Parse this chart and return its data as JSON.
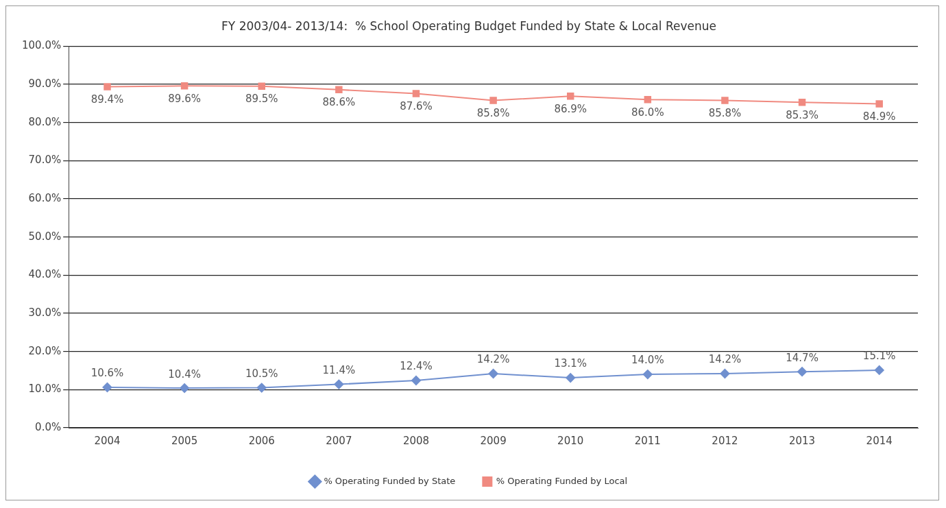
{
  "chart_data": {
    "type": "line",
    "title": "FY 2003/04- 2013/14:  % School Operating Budget Funded by State & Local Revenue",
    "categories": [
      "2004",
      "2005",
      "2006",
      "2007",
      "2008",
      "2009",
      "2010",
      "2011",
      "2012",
      "2013",
      "2014"
    ],
    "series": [
      {
        "name": "% Operating Funded by State",
        "color": "#7090cf",
        "marker": "diamond",
        "values": [
          10.6,
          10.4,
          10.5,
          11.4,
          12.4,
          14.2,
          13.1,
          14.0,
          14.2,
          14.7,
          15.1
        ],
        "value_labels": [
          "10.6%",
          "10.4%",
          "10.5%",
          "11.4%",
          "12.4%",
          "14.2%",
          "13.1%",
          "14.0%",
          "14.2%",
          "14.7%",
          "15.1%"
        ]
      },
      {
        "name": "% Operating Funded by Local",
        "color": "#f08a80",
        "marker": "square",
        "values": [
          89.4,
          89.6,
          89.5,
          88.6,
          87.6,
          85.8,
          86.9,
          86.0,
          85.8,
          85.3,
          84.9
        ],
        "value_labels": [
          "89.4%",
          "89.6%",
          "89.5%",
          "88.6%",
          "87.6%",
          "85.8%",
          "86.9%",
          "86.0%",
          "85.8%",
          "85.3%",
          "84.9%"
        ]
      }
    ],
    "ylim": [
      0,
      100
    ],
    "yticks": [
      {
        "value": 0,
        "label": "0.0%"
      },
      {
        "value": 10,
        "label": "10.0%"
      },
      {
        "value": 20,
        "label": "20.0%"
      },
      {
        "value": 30,
        "label": "30.0%"
      },
      {
        "value": 40,
        "label": "40.0%"
      },
      {
        "value": 50,
        "label": "50.0%"
      },
      {
        "value": 60,
        "label": "60.0%"
      },
      {
        "value": 70,
        "label": "70.0%"
      },
      {
        "value": 80,
        "label": "80.0%"
      },
      {
        "value": 90,
        "label": "90.0%"
      },
      {
        "value": 100,
        "label": "100.0%"
      }
    ],
    "grid": "y",
    "legend": "bottom",
    "line_style": "solid"
  }
}
